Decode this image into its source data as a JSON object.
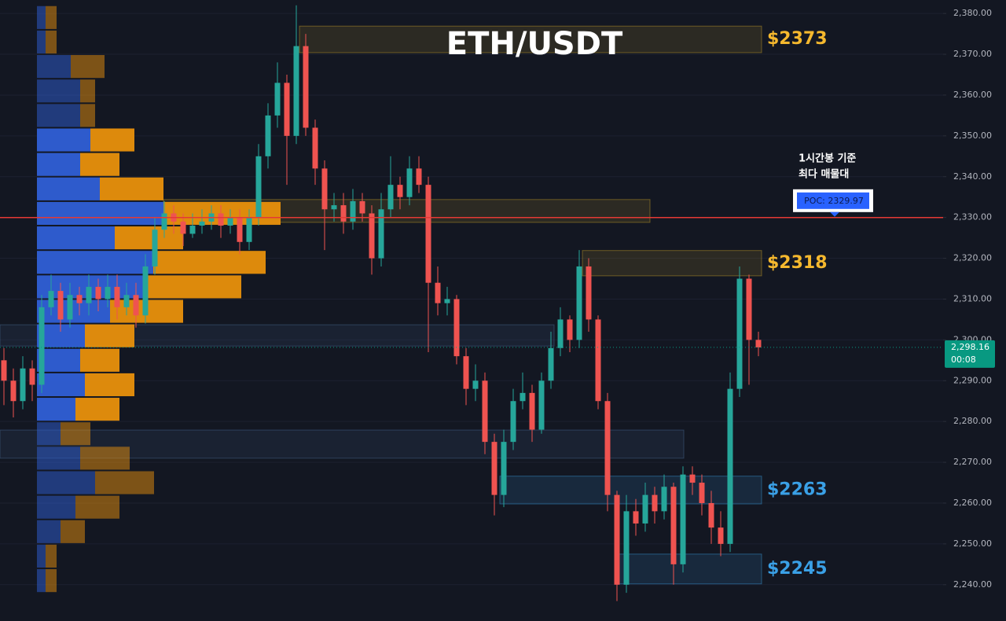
{
  "chart_data": {
    "type": "candlestick",
    "title": "ETH/USDT",
    "ylim": [
      2231.1,
      2383.3
    ],
    "yticks": [
      {
        "value": 2240,
        "label": "2,240.00"
      },
      {
        "value": 2250,
        "label": "2,250.00"
      },
      {
        "value": 2260,
        "label": "2,260.00"
      },
      {
        "value": 2270,
        "label": "2,270.00"
      },
      {
        "value": 2280,
        "label": "2,280.00"
      },
      {
        "value": 2290,
        "label": "2,290.00"
      },
      {
        "value": 2300,
        "label": "2,300.00"
      },
      {
        "value": 2310,
        "label": "2,310.00"
      },
      {
        "value": 2320,
        "label": "2,320.00"
      },
      {
        "value": 2330,
        "label": "2,330.00"
      },
      {
        "value": 2340,
        "label": "2,340.00"
      },
      {
        "value": 2350,
        "label": "2,350.00"
      },
      {
        "value": 2360,
        "label": "2,360.00"
      },
      {
        "value": 2370,
        "label": "2,370.00"
      },
      {
        "value": 2380,
        "label": "2,380.00"
      }
    ],
    "grid": true,
    "up_color": "#26a69a",
    "down_color": "#ef5350",
    "candles": {
      "open": [
        2295,
        2290,
        2285,
        2293,
        2289,
        2308,
        2312,
        2305,
        2311,
        2309,
        2313,
        2310,
        2313,
        2308,
        2311,
        2306,
        2318,
        2327,
        2331,
        2329,
        2326,
        2328,
        2329,
        2331,
        2328,
        2330,
        2324,
        2330,
        2345,
        2355,
        2363,
        2350,
        2372,
        2352,
        2342,
        2332,
        2333,
        2329,
        2334,
        2331,
        2320,
        2332,
        2338,
        2335,
        2342,
        2338,
        2314,
        2309,
        2310,
        2296,
        2288,
        2290,
        2275,
        2262,
        2275,
        2285,
        2287,
        2278,
        2290,
        2298,
        2305,
        2300,
        2318,
        2305,
        2285,
        2262,
        2240,
        2258,
        2255,
        2262,
        2258,
        2264,
        2245,
        2267,
        2265,
        2260,
        2254,
        2250,
        2288,
        2315,
        2300
      ],
      "high": [
        2298,
        2293,
        2296,
        2295,
        2311,
        2316,
        2314,
        2314,
        2313,
        2316,
        2315,
        2316,
        2316,
        2314,
        2314,
        2321,
        2330,
        2334,
        2333,
        2331,
        2331,
        2332,
        2333,
        2333,
        2332,
        2332,
        2332,
        2348,
        2358,
        2368,
        2365,
        2382,
        2375,
        2354,
        2344,
        2336,
        2336,
        2337,
        2336,
        2333,
        2336,
        2345,
        2340,
        2345,
        2345,
        2340,
        2318,
        2313,
        2311,
        2298,
        2294,
        2292,
        2277,
        2278,
        2288,
        2292,
        2289,
        2292,
        2302,
        2308,
        2306,
        2322,
        2320,
        2306,
        2287,
        2263,
        2262,
        2261,
        2265,
        2264,
        2267,
        2265,
        2269,
        2269,
        2267,
        2263,
        2258,
        2292,
        2318,
        2316,
        2302
      ],
      "low": [
        2284,
        2281,
        2283,
        2285,
        2287,
        2306,
        2302,
        2303,
        2306,
        2306,
        2307,
        2308,
        2305,
        2306,
        2303,
        2304,
        2316,
        2325,
        2326,
        2323,
        2325,
        2326,
        2327,
        2325,
        2326,
        2321,
        2322,
        2328,
        2342,
        2352,
        2338,
        2348,
        2350,
        2338,
        2322,
        2329,
        2326,
        2327,
        2329,
        2316,
        2318,
        2330,
        2332,
        2333,
        2336,
        2297,
        2306,
        2306,
        2294,
        2284,
        2285,
        2272,
        2257,
        2259,
        2273,
        2283,
        2275,
        2277,
        2288,
        2296,
        2297,
        2298,
        2302,
        2283,
        2258,
        2236,
        2238,
        2252,
        2253,
        2255,
        2256,
        2240,
        2243,
        2262,
        2257,
        2250,
        2247,
        2248,
        2286,
        2289,
        2296
      ],
      "close": [
        2290,
        2285,
        2293,
        2289,
        2308,
        2312,
        2305,
        2311,
        2309,
        2313,
        2310,
        2313,
        2308,
        2311,
        2306,
        2318,
        2327,
        2331,
        2329,
        2326,
        2328,
        2329,
        2331,
        2328,
        2330,
        2324,
        2330,
        2345,
        2355,
        2363,
        2350,
        2372,
        2352,
        2342,
        2332,
        2333,
        2329,
        2334,
        2331,
        2320,
        2332,
        2338,
        2335,
        2342,
        2338,
        2314,
        2309,
        2310,
        2296,
        2288,
        2290,
        2275,
        2262,
        2275,
        2285,
        2287,
        2278,
        2290,
        2298,
        2305,
        2300,
        2318,
        2305,
        2285,
        2262,
        2240,
        2258,
        2255,
        2262,
        2258,
        2264,
        2245,
        2267,
        2265,
        2260,
        2254,
        2250,
        2288,
        2315,
        2300,
        2298.16
      ]
    },
    "profile": {
      "bins": [
        2382,
        2376,
        2370,
        2364,
        2358,
        2352,
        2346,
        2340,
        2334,
        2328,
        2322,
        2316,
        2310,
        2304,
        2298,
        2292,
        2286,
        2280,
        2274,
        2268,
        2262,
        2256,
        2250,
        2244,
        2238
      ],
      "buy": [
        11,
        11,
        43,
        55,
        55,
        68,
        55,
        80,
        161,
        99,
        148,
        136,
        93,
        61,
        55,
        61,
        49,
        30,
        55,
        74,
        49,
        30,
        11,
        11
      ],
      "sell": [
        14,
        14,
        43,
        19,
        19,
        56,
        50,
        81,
        149,
        87,
        143,
        124,
        93,
        63,
        50,
        63,
        56,
        38,
        63,
        75,
        56,
        31,
        14,
        14
      ],
      "buy_color": "#2f5fd6",
      "sell_color": "#e8900c"
    },
    "zones": [
      {
        "top": 2376.9,
        "bottom": 2370.4,
        "color": "#c9a227",
        "label": "$2373",
        "label_color": "#f5b82e"
      },
      {
        "top": 2334.4,
        "bottom": 2328.8,
        "color": "#c9a227"
      },
      {
        "top": 2321.9,
        "bottom": 2315.7,
        "color": "#c9a227",
        "label": "$2318",
        "label_color": "#f5b82e"
      },
      {
        "top": 2303.7,
        "bottom": 2298.5,
        "color": "#4a6b96"
      },
      {
        "top": 2277.9,
        "bottom": 2271.0,
        "color": "#4a6b96"
      },
      {
        "top": 2266.6,
        "bottom": 2259.8,
        "color": "#3a9fe0",
        "label": "$2263",
        "label_color": "#3aa0e6"
      },
      {
        "top": 2247.5,
        "bottom": 2240.2,
        "color": "#3a9fe0",
        "label": "$2245",
        "label_color": "#3aa0e6"
      }
    ],
    "poc": {
      "value": 2329.97,
      "label": "POC: 2329.97",
      "color": "#e53935",
      "note": [
        "1시간봉 기준",
        "최다 매물대"
      ]
    },
    "last_price": {
      "value": 2298.16,
      "label": "2,298.16",
      "countdown": "00:08",
      "color": "#089981"
    }
  }
}
